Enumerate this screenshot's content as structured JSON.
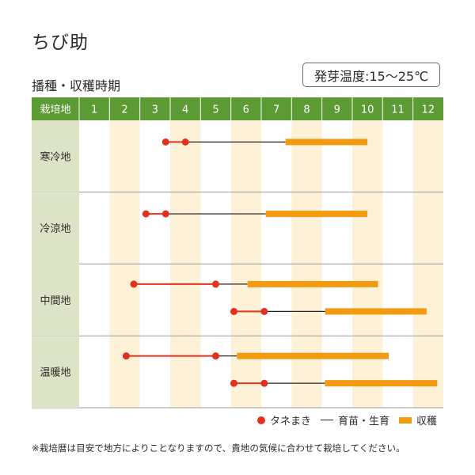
{
  "title": "ちび助",
  "subtitle": "播種・収穫時期",
  "germination_temp": "発芽温度:15～25℃",
  "legend": {
    "seed": "タネまき",
    "grow": "育苗・生育",
    "harvest": "収穫"
  },
  "note": "※栽培暦は目安で地方によりことなりますので、貴地の気候に合わせて栽培してください。",
  "colors": {
    "header": "#5c9a34",
    "header_text": "#ffffff",
    "region_cell": "#dde3c7",
    "even_month": "#fdf2d7",
    "seed": "#e3311d",
    "grow": "#222222",
    "harvest": "#f39a11",
    "divider": "#999999"
  },
  "chart_data": {
    "type": "gantt",
    "corner_label": "栽培地",
    "months": [
      "1",
      "2",
      "3",
      "4",
      "5",
      "6",
      "7",
      "8",
      "9",
      "10",
      "11",
      "12"
    ],
    "regions": [
      {
        "name": "寒冷地",
        "rows": [
          {
            "seed": [
              3.35,
              4.0
            ],
            "grow_end": 7.3,
            "harvest": [
              7.3,
              10.0
            ]
          }
        ]
      },
      {
        "name": "冷涼地",
        "rows": [
          {
            "seed": [
              2.7,
              3.35
            ],
            "grow_end": 6.65,
            "harvest": [
              6.65,
              10.0
            ]
          }
        ]
      },
      {
        "name": "中間地",
        "rows": [
          {
            "seed": [
              2.3,
              5.0
            ],
            "grow_end": 6.05,
            "harvest": [
              6.05,
              10.35
            ]
          },
          {
            "seed": [
              5.6,
              6.6
            ],
            "grow_end": 8.6,
            "harvest": [
              8.6,
              11.95
            ]
          }
        ]
      },
      {
        "name": "温暖地",
        "rows": [
          {
            "seed": [
              2.05,
              5.0
            ],
            "grow_end": 5.7,
            "harvest": [
              5.7,
              10.7
            ]
          },
          {
            "seed": [
              5.6,
              6.6
            ],
            "grow_end": 8.6,
            "harvest": [
              8.6,
              12.3
            ]
          }
        ]
      }
    ]
  }
}
